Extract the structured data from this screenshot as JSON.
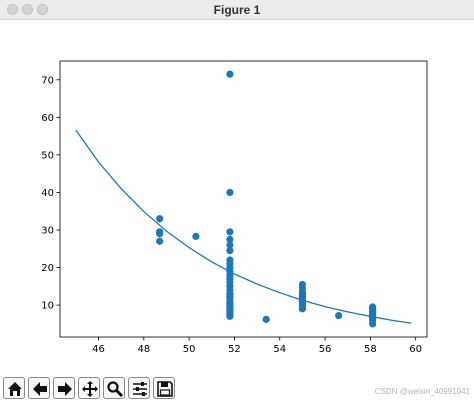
{
  "window": {
    "title": "Figure 1"
  },
  "toolbar": {
    "buttons": [
      {
        "name": "home-button",
        "icon": "home-icon"
      },
      {
        "name": "back-button",
        "icon": "arrow-left-icon"
      },
      {
        "name": "forward-button",
        "icon": "arrow-right-icon"
      },
      {
        "name": "pan-button",
        "icon": "move-icon"
      },
      {
        "name": "zoom-button",
        "icon": "magnifier-icon"
      },
      {
        "name": "configure-subplots-button",
        "icon": "sliders-icon"
      },
      {
        "name": "save-button",
        "icon": "floppy-icon"
      }
    ]
  },
  "watermark": "CSDN @weixin_40991041",
  "colors": {
    "series": "#1f77b4",
    "titlebar": "#ececec"
  },
  "chart_data": {
    "type": "scatter",
    "title": "",
    "xlabel": "",
    "ylabel": "",
    "xlim": [
      44.3,
      60.5
    ],
    "ylim": [
      1.5,
      75.0
    ],
    "xticks": [
      46,
      48,
      50,
      52,
      54,
      56,
      58,
      60
    ],
    "yticks": [
      10,
      20,
      30,
      40,
      50,
      60,
      70
    ],
    "grid": false,
    "series": [
      {
        "type": "scatter",
        "x": [
          48.7,
          48.7,
          48.7,
          48.7,
          50.3,
          51.8,
          51.8,
          51.8,
          51.8,
          51.8,
          51.8,
          51.8,
          51.8,
          51.8,
          51.8,
          51.8,
          51.8,
          51.8,
          51.8,
          51.8,
          51.8,
          51.8,
          51.8,
          51.8,
          51.8,
          51.8,
          51.8,
          51.8,
          51.8,
          51.8,
          51.8,
          51.8,
          51.8,
          53.4,
          55.0,
          55.0,
          55.0,
          55.0,
          55.0,
          55.0,
          55.0,
          55.0,
          55.0,
          55.0,
          55.0,
          55.0,
          56.6,
          58.1,
          58.1,
          58.1,
          58.1,
          58.1,
          58.1,
          58.1,
          58.1,
          58.1
        ],
        "y": [
          33,
          29.5,
          29,
          27,
          28.3,
          71.5,
          40,
          29.5,
          27.5,
          26,
          24.5,
          22,
          21,
          20,
          19,
          18,
          17,
          16,
          15,
          14,
          13,
          12.5,
          12,
          11,
          10.5,
          10,
          9.5,
          9,
          8.5,
          8,
          7.5,
          7.2,
          7,
          6.2,
          15.5,
          14.5,
          13.5,
          13,
          12.5,
          12,
          11.5,
          11,
          10.5,
          10,
          9.5,
          9,
          7.2,
          9.5,
          9,
          8.5,
          8,
          7.5,
          7,
          6.5,
          6,
          5
        ]
      },
      {
        "type": "line",
        "x": [
          45,
          46,
          47,
          48,
          49,
          50,
          51,
          52,
          53,
          54,
          55,
          56,
          57,
          58,
          59,
          59.8
        ],
        "y": [
          56.6,
          48.1,
          41.0,
          34.9,
          29.7,
          25.3,
          21.5,
          18.3,
          15.6,
          13.3,
          11.3,
          9.6,
          8.2,
          7.0,
          5.9,
          5.2
        ]
      }
    ]
  }
}
